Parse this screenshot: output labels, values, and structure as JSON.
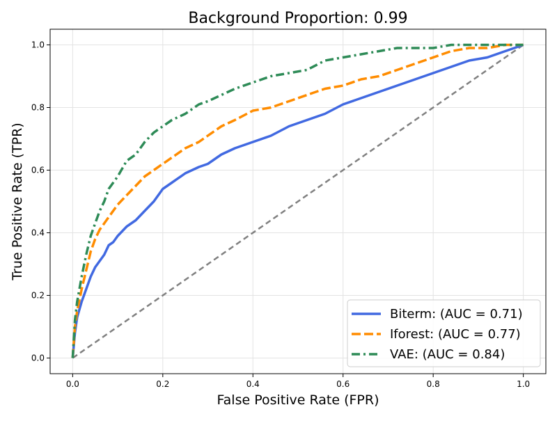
{
  "chart_data": {
    "type": "line",
    "title": "Background Proportion: 0.99",
    "xlabel": "False Positive Rate (FPR)",
    "ylabel": "True Positive Rate (TPR)",
    "xlim": [
      -0.05,
      1.05
    ],
    "ylim": [
      -0.05,
      1.05
    ],
    "xticks": [
      0.0,
      0.2,
      0.4,
      0.6,
      0.8,
      1.0
    ],
    "yticks": [
      0.0,
      0.2,
      0.4,
      0.6,
      0.8,
      1.0
    ],
    "x_tick_labels": [
      "0.0",
      "0.2",
      "0.4",
      "0.6",
      "0.8",
      "1.0"
    ],
    "y_tick_labels": [
      "0.0",
      "0.2",
      "0.4",
      "0.6",
      "0.8",
      "1.0"
    ],
    "grid": true,
    "legend_position": "lower-right",
    "diagonal": {
      "x": [
        0,
        1
      ],
      "y": [
        0,
        1
      ],
      "color": "#808080",
      "style": "dashed"
    },
    "series": [
      {
        "name": "Biterm: (AUC = 0.71)",
        "color": "#4169E1",
        "style": "solid",
        "x": [
          0,
          0.005,
          0.01,
          0.02,
          0.03,
          0.04,
          0.05,
          0.06,
          0.07,
          0.08,
          0.09,
          0.1,
          0.12,
          0.14,
          0.16,
          0.18,
          0.2,
          0.22,
          0.25,
          0.28,
          0.3,
          0.33,
          0.36,
          0.4,
          0.44,
          0.48,
          0.52,
          0.56,
          0.6,
          0.64,
          0.68,
          0.72,
          0.76,
          0.8,
          0.84,
          0.88,
          0.92,
          0.96,
          1.0
        ],
        "y": [
          0,
          0.08,
          0.13,
          0.18,
          0.22,
          0.26,
          0.29,
          0.31,
          0.33,
          0.36,
          0.37,
          0.39,
          0.42,
          0.44,
          0.47,
          0.5,
          0.54,
          0.56,
          0.59,
          0.61,
          0.62,
          0.65,
          0.67,
          0.69,
          0.71,
          0.74,
          0.76,
          0.78,
          0.81,
          0.83,
          0.85,
          0.87,
          0.89,
          0.91,
          0.93,
          0.95,
          0.96,
          0.98,
          1.0
        ]
      },
      {
        "name": "Iforest: (AUC = 0.77)",
        "color": "#FF8C00",
        "style": "dashed",
        "x": [
          0,
          0.005,
          0.01,
          0.02,
          0.03,
          0.04,
          0.05,
          0.06,
          0.07,
          0.08,
          0.1,
          0.12,
          0.14,
          0.16,
          0.18,
          0.2,
          0.22,
          0.25,
          0.28,
          0.3,
          0.33,
          0.36,
          0.4,
          0.44,
          0.48,
          0.52,
          0.56,
          0.6,
          0.64,
          0.68,
          0.72,
          0.76,
          0.8,
          0.84,
          0.88,
          0.92,
          0.96,
          1.0
        ],
        "y": [
          0,
          0.1,
          0.15,
          0.22,
          0.28,
          0.34,
          0.38,
          0.41,
          0.43,
          0.45,
          0.49,
          0.52,
          0.55,
          0.58,
          0.6,
          0.62,
          0.64,
          0.67,
          0.69,
          0.71,
          0.74,
          0.76,
          0.79,
          0.8,
          0.82,
          0.84,
          0.86,
          0.87,
          0.89,
          0.9,
          0.92,
          0.94,
          0.96,
          0.98,
          0.99,
          0.99,
          1.0,
          1.0
        ]
      },
      {
        "name": "VAE: (AUC = 0.84)",
        "color": "#2E8B57",
        "style": "dashdot",
        "x": [
          0,
          0.005,
          0.01,
          0.02,
          0.03,
          0.04,
          0.05,
          0.06,
          0.07,
          0.08,
          0.1,
          0.12,
          0.14,
          0.16,
          0.18,
          0.2,
          0.22,
          0.25,
          0.28,
          0.3,
          0.33,
          0.36,
          0.4,
          0.44,
          0.48,
          0.52,
          0.56,
          0.6,
          0.64,
          0.68,
          0.72,
          0.76,
          0.8,
          0.84,
          0.88,
          0.92,
          0.96,
          1.0
        ],
        "y": [
          0,
          0.12,
          0.18,
          0.26,
          0.33,
          0.39,
          0.43,
          0.47,
          0.5,
          0.54,
          0.58,
          0.63,
          0.65,
          0.69,
          0.72,
          0.74,
          0.76,
          0.78,
          0.81,
          0.82,
          0.84,
          0.86,
          0.88,
          0.9,
          0.91,
          0.92,
          0.95,
          0.96,
          0.97,
          0.98,
          0.99,
          0.99,
          0.99,
          1.0,
          1.0,
          1.0,
          1.0,
          1.0
        ]
      }
    ]
  }
}
